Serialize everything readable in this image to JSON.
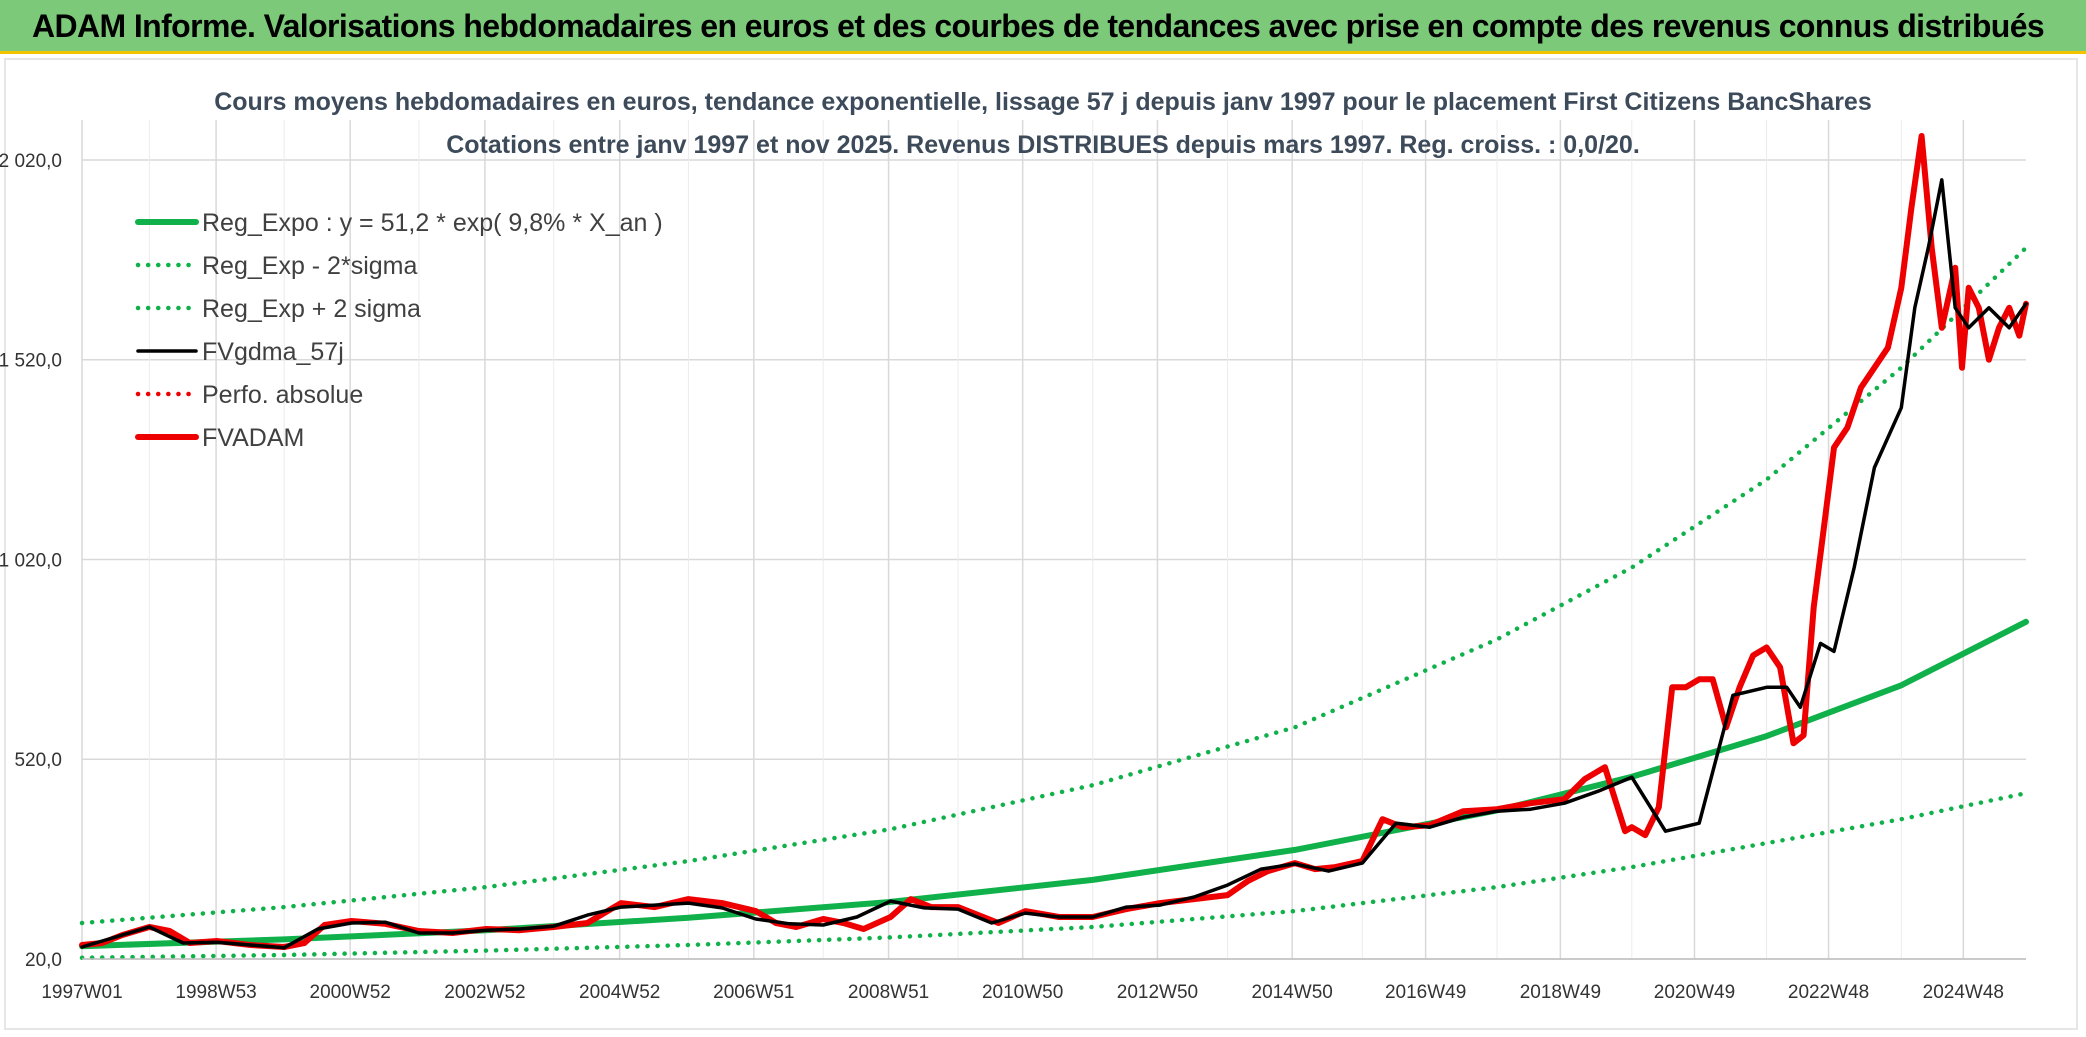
{
  "banner": {
    "title": "ADAM Informe. Valorisations hebdomadaires en euros et des courbes de tendances avec prise en compte des revenus connus distribués"
  },
  "colors": {
    "banner_bg": "#7dc97a",
    "banner_accent": "#f2c400",
    "green": "#10b14b",
    "black": "#000000",
    "red": "#ee0000"
  },
  "chart_data": {
    "type": "line",
    "title": "Cours moyens hebdomadaires en euros, tendance exponentielle, lissage 57 j depuis janv 1997 pour le placement First Citizens BancShares",
    "subtitle": "Cotations entre janv 1997 et nov 2025. Revenus DISTRIBUES depuis mars 1997. Reg. croiss. : 0,0/20.",
    "ylim": [
      20,
      2120
    ],
    "y_ticks": [
      20,
      520,
      1020,
      1520,
      2020
    ],
    "y_tick_labels": [
      "20,0",
      "520,0",
      "1 020,0",
      "1 520,0",
      "2 020,0"
    ],
    "x_range": [
      1997.0,
      2025.85
    ],
    "x_ticks": [
      1997.0,
      1998.99,
      2000.98,
      2002.98,
      2004.98,
      2006.97,
      2008.97,
      2010.96,
      2012.96,
      2014.96,
      2016.94,
      2018.94,
      2020.93,
      2022.92,
      2024.92
    ],
    "x_tick_labels": [
      "1997W01",
      "1998W53",
      "2000W52",
      "2002W52",
      "2004W52",
      "2006W51",
      "2008W51",
      "2010W50",
      "2012W50",
      "2014W50",
      "2016W49",
      "2018W49",
      "2020W49",
      "2022W48",
      "2024W48"
    ],
    "grid": "vertical",
    "legend_position": "top-left",
    "series": [
      {
        "name": "Reg_Expo : y = 51,2 * exp( 9,8% *  X_an )",
        "style": "solid-thick",
        "color": "#10b14b",
        "x": [
          1997,
          2000,
          2003,
          2006,
          2009,
          2012,
          2015,
          2018,
          2020,
          2022,
          2024,
          2025.85
        ],
        "y": [
          52,
          69,
          92,
          123,
          163,
          218,
          293,
          392,
          476,
          578,
          705,
          864
        ]
      },
      {
        "name": "Reg_Exp - 2*sigma",
        "style": "dotted",
        "color": "#10b14b",
        "x": [
          1997,
          2000,
          2003,
          2006,
          2009,
          2012,
          2015,
          2018,
          2020,
          2022,
          2024,
          2025.85
        ],
        "y": [
          23,
          30,
          41,
          55,
          74,
          100,
          140,
          200,
          250,
          310,
          370,
          435
        ]
      },
      {
        "name": "Reg_Exp + 2 sigma",
        "style": "dotted",
        "color": "#10b14b",
        "x": [
          1997,
          2000,
          2003,
          2006,
          2009,
          2012,
          2015,
          2018,
          2020,
          2022,
          2024,
          2025.85
        ],
        "y": [
          110,
          150,
          200,
          265,
          345,
          455,
          600,
          820,
          1000,
          1220,
          1500,
          1800
        ]
      },
      {
        "name": "FVgdma_57j",
        "style": "solid",
        "color": "#000000",
        "x": [
          1997,
          1997.5,
          1998,
          1998.5,
          1999,
          1999.5,
          2000,
          2000.5,
          2001,
          2001.5,
          2002,
          2002.5,
          2003,
          2003.5,
          2004,
          2004.5,
          2005,
          2005.5,
          2006,
          2006.5,
          2007,
          2007.5,
          2008,
          2008.5,
          2009,
          2009.5,
          2010,
          2010.5,
          2011,
          2011.5,
          2012,
          2012.5,
          2013,
          2013.5,
          2014,
          2014.5,
          2015,
          2015.5,
          2016,
          2016.5,
          2017,
          2017.5,
          2018,
          2018.5,
          2019,
          2019.5,
          2020,
          2020.5,
          2021,
          2021.5,
          2022,
          2022.3,
          2022.5,
          2022.8,
          2023,
          2023.3,
          2023.6,
          2024,
          2024.2,
          2024.4,
          2024.6,
          2024.8,
          2025,
          2025.3,
          2025.6,
          2025.85
        ],
        "y": [
          50,
          75,
          100,
          60,
          62,
          55,
          48,
          95,
          110,
          112,
          85,
          85,
          92,
          95,
          102,
          130,
          150,
          155,
          160,
          148,
          120,
          108,
          105,
          125,
          165,
          148,
          145,
          110,
          135,
          125,
          125,
          150,
          155,
          175,
          205,
          245,
          258,
          240,
          260,
          360,
          350,
          375,
          390,
          395,
          410,
          440,
          475,
          340,
          360,
          680,
          700,
          700,
          650,
          810,
          790,
          1000,
          1250,
          1400,
          1650,
          1800,
          1970,
          1650,
          1600,
          1650,
          1600,
          1660
        ]
      },
      {
        "name": "Perfo. absolue",
        "style": "dotted",
        "color": "#ee0000",
        "x": [],
        "y": []
      },
      {
        "name": "FVADAM",
        "style": "solid-thick",
        "color": "#ee0000",
        "x": [
          1997,
          1997.3,
          1997.6,
          1998,
          1998.3,
          1998.6,
          1999,
          1999.5,
          2000,
          2000.3,
          2000.6,
          2001,
          2001.5,
          2002,
          2002.5,
          2003,
          2003.5,
          2004,
          2004.5,
          2005,
          2005.5,
          2006,
          2006.5,
          2007,
          2007.3,
          2007.6,
          2008,
          2008.3,
          2008.6,
          2009,
          2009.3,
          2009.6,
          2010,
          2010.3,
          2010.6,
          2011,
          2011.5,
          2012,
          2012.5,
          2013,
          2013.5,
          2014,
          2014.3,
          2014.6,
          2015,
          2015.3,
          2015.6,
          2016,
          2016.3,
          2016.6,
          2017,
          2017.5,
          2018,
          2018.5,
          2019,
          2019.3,
          2019.6,
          2019.9,
          2020,
          2020.2,
          2020.4,
          2020.6,
          2020.8,
          2021,
          2021.2,
          2021.4,
          2021.6,
          2021.8,
          2022,
          2022.2,
          2022.4,
          2022.55,
          2022.7,
          2022.85,
          2023,
          2023.2,
          2023.4,
          2023.6,
          2023.8,
          2024,
          2024.15,
          2024.3,
          2024.45,
          2024.6,
          2024.8,
          2024.9,
          2025,
          2025.15,
          2025.3,
          2025.45,
          2025.6,
          2025.75,
          2025.85
        ],
        "y": [
          55,
          60,
          80,
          100,
          90,
          60,
          65,
          55,
          50,
          60,
          105,
          115,
          108,
          90,
          85,
          95,
          92,
          100,
          110,
          160,
          150,
          170,
          160,
          140,
          110,
          100,
          120,
          110,
          95,
          125,
          170,
          150,
          150,
          130,
          110,
          140,
          125,
          125,
          145,
          160,
          170,
          180,
          215,
          240,
          260,
          245,
          250,
          265,
          370,
          350,
          355,
          390,
          395,
          410,
          420,
          470,
          500,
          340,
          350,
          330,
          400,
          700,
          700,
          720,
          720,
          600,
          700,
          780,
          800,
          750,
          560,
          580,
          900,
          1100,
          1300,
          1350,
          1450,
          1500,
          1550,
          1700,
          1900,
          2080,
          1800,
          1600,
          1750,
          1500,
          1700,
          1650,
          1520,
          1600,
          1650,
          1580,
          1660
        ]
      }
    ]
  }
}
